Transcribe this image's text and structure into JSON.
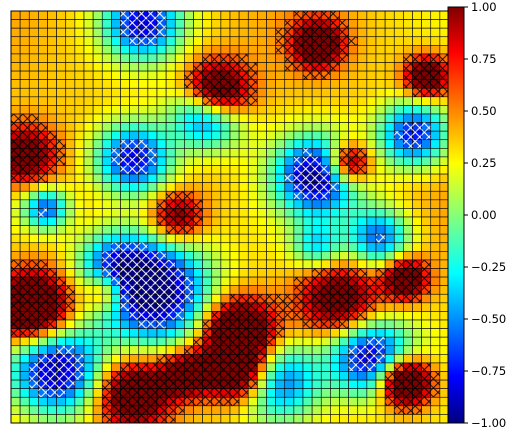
{
  "chart_data": {
    "type": "heatmap",
    "title": "",
    "xlabel": "",
    "ylabel": "",
    "colormap": "jet",
    "vmin": -1.0,
    "vmax": 1.0,
    "grid": true,
    "grid_cells": [
      48,
      48
    ],
    "hatch_pattern": "cross-hatch on cells with |value| >= 0.5",
    "colorbar": {
      "orientation": "vertical",
      "placement": "right",
      "ticks": [
        1.0,
        0.75,
        0.5,
        0.25,
        0.0,
        -0.25,
        -0.5,
        -0.75,
        -1.0
      ],
      "tick_labels": [
        "1.00",
        "0.75",
        "0.50",
        "0.25",
        "0.00",
        "−0.25",
        "−0.50",
        "−0.75",
        "−1.00"
      ]
    },
    "field_description": "smooth spatial field: deep blue (~-0.9) basins with white cross-hatch, blue/cyan (~-0.6 to -0.2) borders, yellow-green (~0.2 to 0.4) ridges, orange (~0.5 to 0.75) and dark-red (~0.8 to 1.0) cross-hatched peaks",
    "blobs": [
      {
        "x": 0.1,
        "y": 0.87,
        "s": 0.075,
        "a": -1.3
      },
      {
        "x": 0.33,
        "y": 0.68,
        "s": 0.085,
        "a": -1.4
      },
      {
        "x": 0.24,
        "y": 0.62,
        "s": 0.06,
        "a": -0.8
      },
      {
        "x": 0.82,
        "y": 0.84,
        "s": 0.065,
        "a": -1.2
      },
      {
        "x": 0.61,
        "y": 0.9,
        "s": 0.07,
        "a": -1.0
      },
      {
        "x": 0.08,
        "y": 0.48,
        "s": 0.035,
        "a": -0.9
      },
      {
        "x": 0.28,
        "y": 0.36,
        "s": 0.06,
        "a": -1.2
      },
      {
        "x": 0.7,
        "y": 0.4,
        "s": 0.065,
        "a": -1.3
      },
      {
        "x": 0.92,
        "y": 0.3,
        "s": 0.055,
        "a": -1.1
      },
      {
        "x": 0.3,
        "y": 0.03,
        "s": 0.06,
        "a": -1.1
      },
      {
        "x": 0.45,
        "y": 0.25,
        "s": 0.055,
        "a": -1.2
      },
      {
        "x": 0.84,
        "y": 0.55,
        "s": 0.05,
        "a": -0.9
      },
      {
        "x": 0.7,
        "y": 0.57,
        "s": 0.04,
        "a": -0.6
      },
      {
        "x": 0.05,
        "y": 0.72,
        "s": 0.06,
        "a": 1.3
      },
      {
        "x": 0.28,
        "y": 0.93,
        "s": 0.06,
        "a": 1.1
      },
      {
        "x": 0.52,
        "y": 0.88,
        "s": 0.05,
        "a": 1.1
      },
      {
        "x": 0.52,
        "y": 0.78,
        "s": 0.055,
        "a": 1.3
      },
      {
        "x": 0.47,
        "y": 0.2,
        "s": 0.05,
        "a": 1.4
      },
      {
        "x": 0.7,
        "y": 0.08,
        "s": 0.04,
        "a": 1.0
      },
      {
        "x": 0.77,
        "y": 0.37,
        "s": 0.035,
        "a": 1.1
      },
      {
        "x": 0.75,
        "y": 0.7,
        "s": 0.06,
        "a": 0.9
      },
      {
        "x": 0.95,
        "y": 0.16,
        "s": 0.035,
        "a": 1.0
      },
      {
        "x": 0.9,
        "y": 0.9,
        "s": 0.04,
        "a": 1.5
      },
      {
        "x": 0.9,
        "y": 0.65,
        "s": 0.035,
        "a": 1.0
      },
      {
        "x": 0.38,
        "y": 0.5,
        "s": 0.04,
        "a": 0.7
      },
      {
        "x": 0.22,
        "y": 0.68,
        "s": 0.035,
        "a": 0.8
      },
      {
        "x": 0.03,
        "y": 0.35,
        "s": 0.05,
        "a": 0.9
      },
      {
        "x": 0.4,
        "y": 0.88,
        "s": 0.04,
        "a": 0.9
      }
    ]
  }
}
